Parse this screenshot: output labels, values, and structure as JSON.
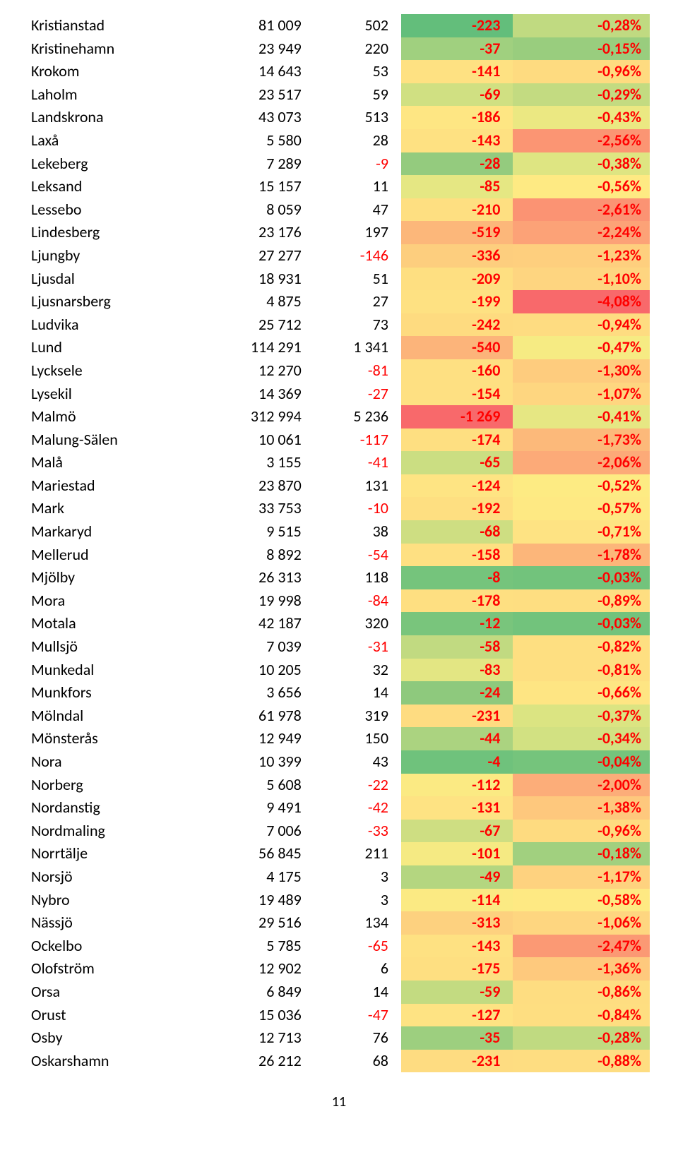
{
  "page_number": "11",
  "colors": {
    "neg_text": "#ff0000",
    "black": "#000000"
  },
  "rows": [
    {
      "name": "Kristianstad",
      "c2": "81 009",
      "c3": "502",
      "c4": "-223",
      "pct": "-0,28%",
      "bg4": "#63be7b",
      "bg5": "#c0da81"
    },
    {
      "name": "Kristinehamn",
      "c2": "23 949",
      "c3": "220",
      "c4": "-37",
      "pct": "-0,15%",
      "bg4": "#a0d07f",
      "bg5": "#99cd7e"
    },
    {
      "name": "Krokom",
      "c2": "14 643",
      "c3": "53",
      "c4": "-141",
      "pct": "-0,96%",
      "bg4": "#fee182",
      "bg5": "#fedb80"
    },
    {
      "name": "Laholm",
      "c2": "23 517",
      "c3": "59",
      "c4": "-69",
      "pct": "-0,29%",
      "bg4": "#d0e082",
      "bg5": "#c3db81"
    },
    {
      "name": "Landskrona",
      "c2": "43 073",
      "c3": "513",
      "c4": "-186",
      "pct": "-0,43%",
      "bg4": "#fee683",
      "bg5": "#ebe882"
    },
    {
      "name": "Laxå",
      "c2": "5 580",
      "c3": "28",
      "c4": "-143",
      "pct": "-2,56%",
      "bg4": "#fee182",
      "bg5": "#fb9573"
    },
    {
      "name": "Lekeberg",
      "c2": "7 289",
      "c3": "-9",
      "c4": "-28",
      "pct": "-0,38%",
      "bg4": "#94cb7e",
      "bg5": "#dee582"
    },
    {
      "name": "Leksand",
      "c2": "15 157",
      "c3": "11",
      "c4": "-85",
      "pct": "-0,56%",
      "bg4": "#e5e783",
      "bg5": "#feea83"
    },
    {
      "name": "Lessebo",
      "c2": "8 059",
      "c3": "47",
      "c4": "-210",
      "pct": "-2,61%",
      "bg4": "#fedf81",
      "bg5": "#fb9373"
    },
    {
      "name": "Lindesberg",
      "c2": "23 176",
      "c3": "197",
      "c4": "-519",
      "pct": "-2,24%",
      "bg4": "#fcb77a",
      "bg5": "#fca277"
    },
    {
      "name": "Ljungby",
      "c2": "27 277",
      "c3": "-146",
      "c4": "-336",
      "pct": "-1,23%",
      "bg4": "#fdce7e",
      "bg5": "#fecf7e"
    },
    {
      "name": "Ljusdal",
      "c2": "18 931",
      "c3": "51",
      "c4": "-209",
      "pct": "-1,10%",
      "bg4": "#fedf81",
      "bg5": "#fed580"
    },
    {
      "name": "Ljusnarsberg",
      "c2": "4 875",
      "c3": "27",
      "c4": "-199",
      "pct": "-4,08%",
      "bg4": "#fee182",
      "bg5": "#f8696b"
    },
    {
      "name": "Ludvika",
      "c2": "25 712",
      "c3": "73",
      "c4": "-242",
      "pct": "-0,94%",
      "bg4": "#fedb80",
      "bg5": "#fedc81"
    },
    {
      "name": "Lund",
      "c2": "114 291",
      "c3": "1 341",
      "c4": "-540",
      "pct": "-0,47%",
      "bg4": "#fcb47a",
      "bg5": "#f6eb83"
    },
    {
      "name": "Lycksele",
      "c2": "12 270",
      "c3": "-81",
      "c4": "-160",
      "pct": "-1,30%",
      "bg4": "#fee082",
      "bg5": "#fecc7e"
    },
    {
      "name": "Lysekil",
      "c2": "14 369",
      "c3": "-27",
      "c4": "-154",
      "pct": "-1,07%",
      "bg4": "#fee082",
      "bg5": "#fed680"
    },
    {
      "name": "Malmö",
      "c2": "312 994",
      "c3": "5 236",
      "c4": "-1 269",
      "pct": "-0,41%",
      "bg4": "#f8696b",
      "bg5": "#e6e783"
    },
    {
      "name": "Malung-Sälen",
      "c2": "10 061",
      "c3": "-117",
      "c4": "-174",
      "pct": "-1,73%",
      "bg4": "#fedf81",
      "bg5": "#fcb97a"
    },
    {
      "name": "Malå",
      "c2": "3 155",
      "c3": "-41",
      "c4": "-65",
      "pct": "-2,06%",
      "bg4": "#cbde82",
      "bg5": "#fcaa78"
    },
    {
      "name": "Mariestad",
      "c2": "23 870",
      "c3": "131",
      "c4": "-124",
      "pct": "-0,52%",
      "bg4": "#fee483",
      "bg5": "#fdeb83"
    },
    {
      "name": "Mark",
      "c2": "33 753",
      "c3": "-10",
      "c4": "-192",
      "pct": "-0,57%",
      "bg4": "#fedf81",
      "bg5": "#fee983"
    },
    {
      "name": "Markaryd",
      "c2": "9 515",
      "c3": "38",
      "c4": "-68",
      "pct": "-0,71%",
      "bg4": "#cede82",
      "bg5": "#fee383"
    },
    {
      "name": "Mellerud",
      "c2": "8 892",
      "c3": "-54",
      "c4": "-158",
      "pct": "-1,78%",
      "bg4": "#fee082",
      "bg5": "#fcb67a"
    },
    {
      "name": "Mjölby",
      "c2": "26 313",
      "c3": "118",
      "c4": "-8",
      "pct": "-0,03%",
      "bg4": "#75c47c",
      "bg5": "#72c37c"
    },
    {
      "name": "Mora",
      "c2": "19 998",
      "c3": "-84",
      "c4": "-178",
      "pct": "-0,89%",
      "bg4": "#fedf81",
      "bg5": "#fede81"
    },
    {
      "name": "Motala",
      "c2": "42 187",
      "c3": "320",
      "c4": "-12",
      "pct": "-0,03%",
      "bg4": "#79c57c",
      "bg5": "#72c37c"
    },
    {
      "name": "Mullsjö",
      "c2": "7 039",
      "c3": "-31",
      "c4": "-58",
      "pct": "-0,82%",
      "bg4": "#c1da81",
      "bg5": "#fedf81"
    },
    {
      "name": "Munkedal",
      "c2": "10 205",
      "c3": "32",
      "c4": "-83",
      "pct": "-0,81%",
      "bg4": "#e3e683",
      "bg5": "#fedf81"
    },
    {
      "name": "Munkfors",
      "c2": "3 656",
      "c3": "14",
      "c4": "-24",
      "pct": "-0,66%",
      "bg4": "#8ec97d",
      "bg5": "#fee583"
    },
    {
      "name": "Mölndal",
      "c2": "61 978",
      "c3": "319",
      "c4": "-231",
      "pct": "-0,37%",
      "bg4": "#fedc81",
      "bg5": "#dbe482"
    },
    {
      "name": "Mönsterås",
      "c2": "12 949",
      "c3": "150",
      "c4": "-44",
      "pct": "-0,34%",
      "bg4": "#abd380",
      "bg5": "#d2e182"
    },
    {
      "name": "Nora",
      "c2": "10 399",
      "c3": "43",
      "c4": "-4",
      "pct": "-0,04%",
      "bg4": "#6fc27c",
      "bg5": "#75c47c"
    },
    {
      "name": "Norberg",
      "c2": "5 608",
      "c3": "-22",
      "c4": "-112",
      "pct": "-2,00%",
      "bg4": "#fbea83",
      "bg5": "#fcad79"
    },
    {
      "name": "Nordanstig",
      "c2": "9 491",
      "c3": "-42",
      "c4": "-131",
      "pct": "-1,38%",
      "bg4": "#fee383",
      "bg5": "#fec87d"
    },
    {
      "name": "Nordmaling",
      "c2": "7 006",
      "c3": "-33",
      "c4": "-67",
      "pct": "-0,96%",
      "bg4": "#cede82",
      "bg5": "#fedb80"
    },
    {
      "name": "Norrtälje",
      "c2": "56 845",
      "c3": "211",
      "c4": "-101",
      "pct": "-0,18%",
      "bg4": "#f5ea83",
      "bg5": "#a1d07f"
    },
    {
      "name": "Norsjö",
      "c2": "4 175",
      "c3": "3",
      "c4": "-49",
      "pct": "-1,17%",
      "bg4": "#b4d680",
      "bg5": "#fed27f"
    },
    {
      "name": "Nybro",
      "c2": "19 489",
      "c3": "3",
      "c4": "-114",
      "pct": "-0,58%",
      "bg4": "#fbea83",
      "bg5": "#fee983"
    },
    {
      "name": "Nässjö",
      "c2": "29 516",
      "c3": "134",
      "c4": "-313",
      "pct": "-1,06%",
      "bg4": "#fdd17f",
      "bg5": "#fed680"
    },
    {
      "name": "Ockelbo",
      "c2": "5 785",
      "c3": "-65",
      "c4": "-143",
      "pct": "-2,47%",
      "bg4": "#fee182",
      "bg5": "#fb9974"
    },
    {
      "name": "Olofström",
      "c2": "12 902",
      "c3": "6",
      "c4": "-175",
      "pct": "-1,36%",
      "bg4": "#fedf81",
      "bg5": "#fec97d"
    },
    {
      "name": "Orsa",
      "c2": "6 849",
      "c3": "14",
      "c4": "-59",
      "pct": "-0,86%",
      "bg4": "#c3db81",
      "bg5": "#fedd81"
    },
    {
      "name": "Orust",
      "c2": "15 036",
      "c3": "-47",
      "c4": "-127",
      "pct": "-0,84%",
      "bg4": "#fee383",
      "bg5": "#fede81"
    },
    {
      "name": "Osby",
      "c2": "12 713",
      "c3": "76",
      "c4": "-35",
      "pct": "-0,28%",
      "bg4": "#9dcf7f",
      "bg5": "#c0da81"
    },
    {
      "name": "Oskarshamn",
      "c2": "26 212",
      "c3": "68",
      "c4": "-231",
      "pct": "-0,88%",
      "bg4": "#fedc81",
      "bg5": "#fedd81"
    }
  ]
}
